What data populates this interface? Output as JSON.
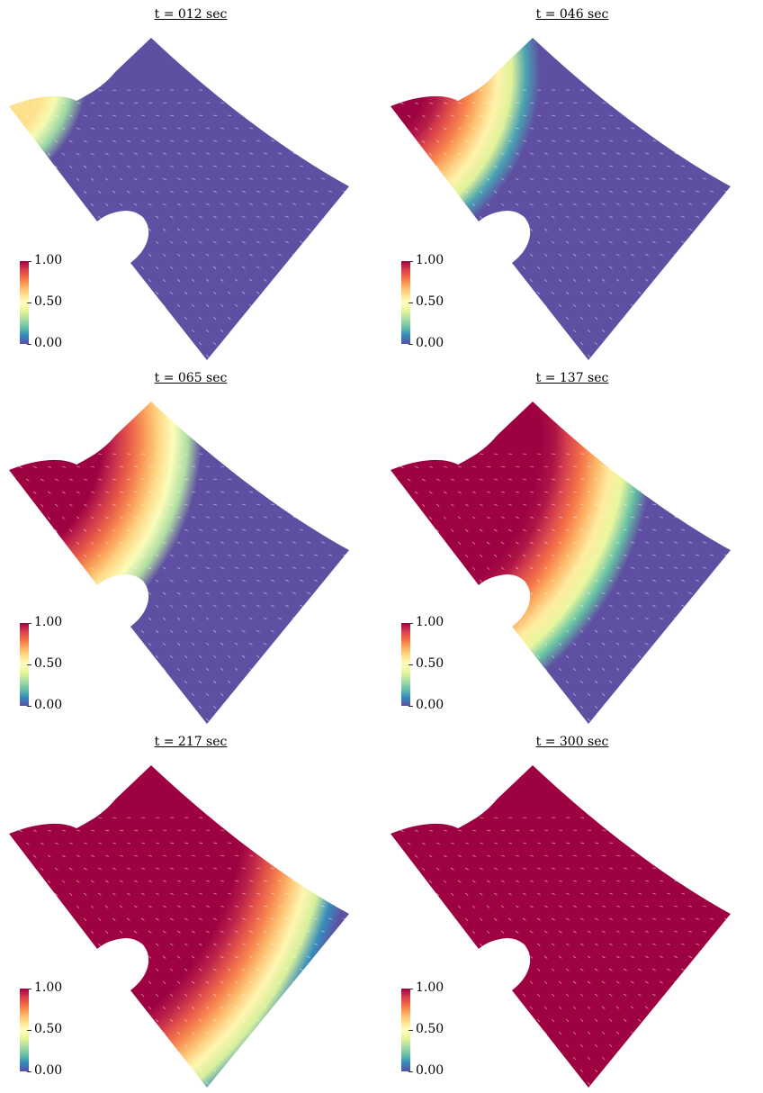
{
  "panels": [
    {
      "title": "t = 012 sec",
      "front": 0.11
    },
    {
      "title": "t = 046 sec",
      "front": 0.3
    },
    {
      "title": "t = 065 sec",
      "front": 0.45
    },
    {
      "title": "t = 137 sec",
      "front": 0.64
    },
    {
      "title": "t = 217 sec",
      "front": 0.88
    },
    {
      "title": "t = 300 sec",
      "front": 1.35
    }
  ],
  "colorbar": {
    "ticks": [
      "1.00",
      "0.50",
      "0.00"
    ],
    "colors": [
      "#9e0142",
      "#d53e4f",
      "#f46d43",
      "#fdae61",
      "#fee08b",
      "#ffffbf",
      "#e6f598",
      "#abdda4",
      "#66c2a5",
      "#3288bd",
      "#5e4fa2"
    ]
  }
}
